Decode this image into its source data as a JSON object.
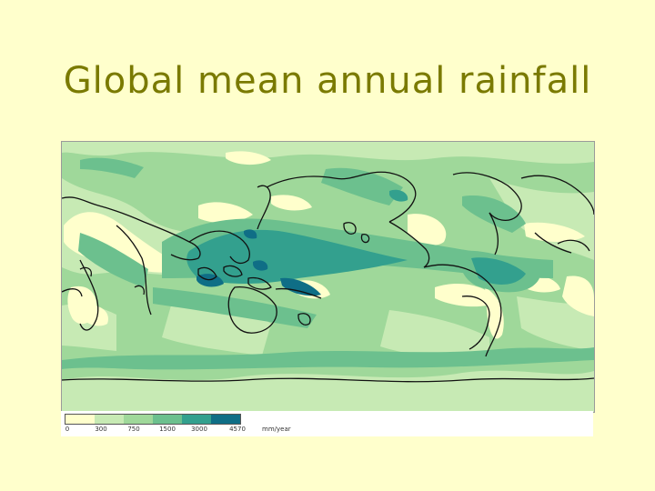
{
  "slide": {
    "title": "Global mean annual rainfall"
  },
  "legend": {
    "ticks": [
      "0",
      "300",
      "750",
      "1500",
      "3000",
      "4570"
    ],
    "unit": "mm/year",
    "colors": [
      "#ffffcc",
      "#c7eab4",
      "#9fd89a",
      "#6cc08e",
      "#33a08e",
      "#0f6e86"
    ]
  },
  "map": {
    "colors": {
      "dry": "#ffffcc",
      "low": "#c7eab4",
      "moderate": "#9fd89a",
      "wet": "#6cc08e",
      "very_wet": "#33a08e",
      "extreme": "#0f6e86",
      "coastline": "#111111"
    }
  }
}
